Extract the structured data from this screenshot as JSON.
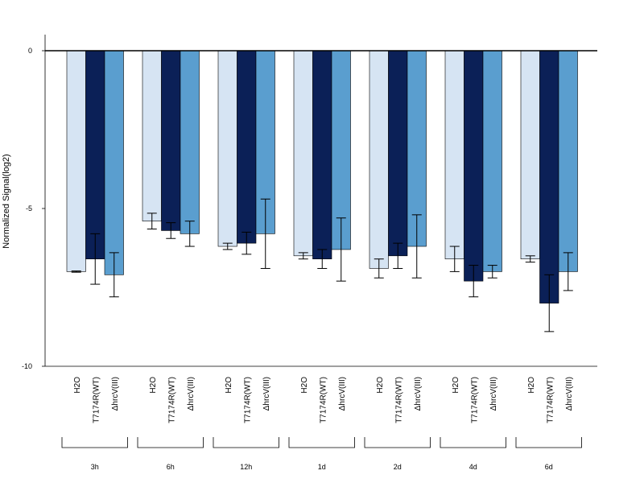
{
  "chart_data": {
    "type": "bar",
    "ylabel": "Normalized Signal(log2)",
    "ylim": [
      -10,
      0.5
    ],
    "yticks": [
      0,
      -5,
      -10
    ],
    "bar_labels": [
      "H2O",
      "T7174R(WT)",
      "ΔhrcV(III)"
    ],
    "group_labels": [
      "3h",
      "6h",
      "12h",
      "1d",
      "2d",
      "4d",
      "6d"
    ],
    "colors": [
      "#d6e4f3",
      "#0b2057",
      "#5a9ecf"
    ],
    "series": [
      {
        "values": [
          -7.0,
          -5.4,
          -6.2,
          -6.5,
          -6.9,
          -6.6,
          -6.6
        ],
        "errors": [
          0.02,
          0.25,
          0.1,
          0.1,
          0.3,
          0.4,
          0.1
        ]
      },
      {
        "values": [
          -6.6,
          -5.7,
          -6.1,
          -6.6,
          -6.5,
          -7.3,
          -8.0
        ],
        "errors": [
          0.8,
          0.25,
          0.35,
          0.3,
          0.4,
          0.5,
          0.9
        ]
      },
      {
        "values": [
          -7.1,
          -5.8,
          -5.8,
          -6.3,
          -6.2,
          -7.0,
          -7.0
        ],
        "errors": [
          0.7,
          0.4,
          1.1,
          1.0,
          1.0,
          0.2,
          0.6
        ]
      }
    ]
  }
}
